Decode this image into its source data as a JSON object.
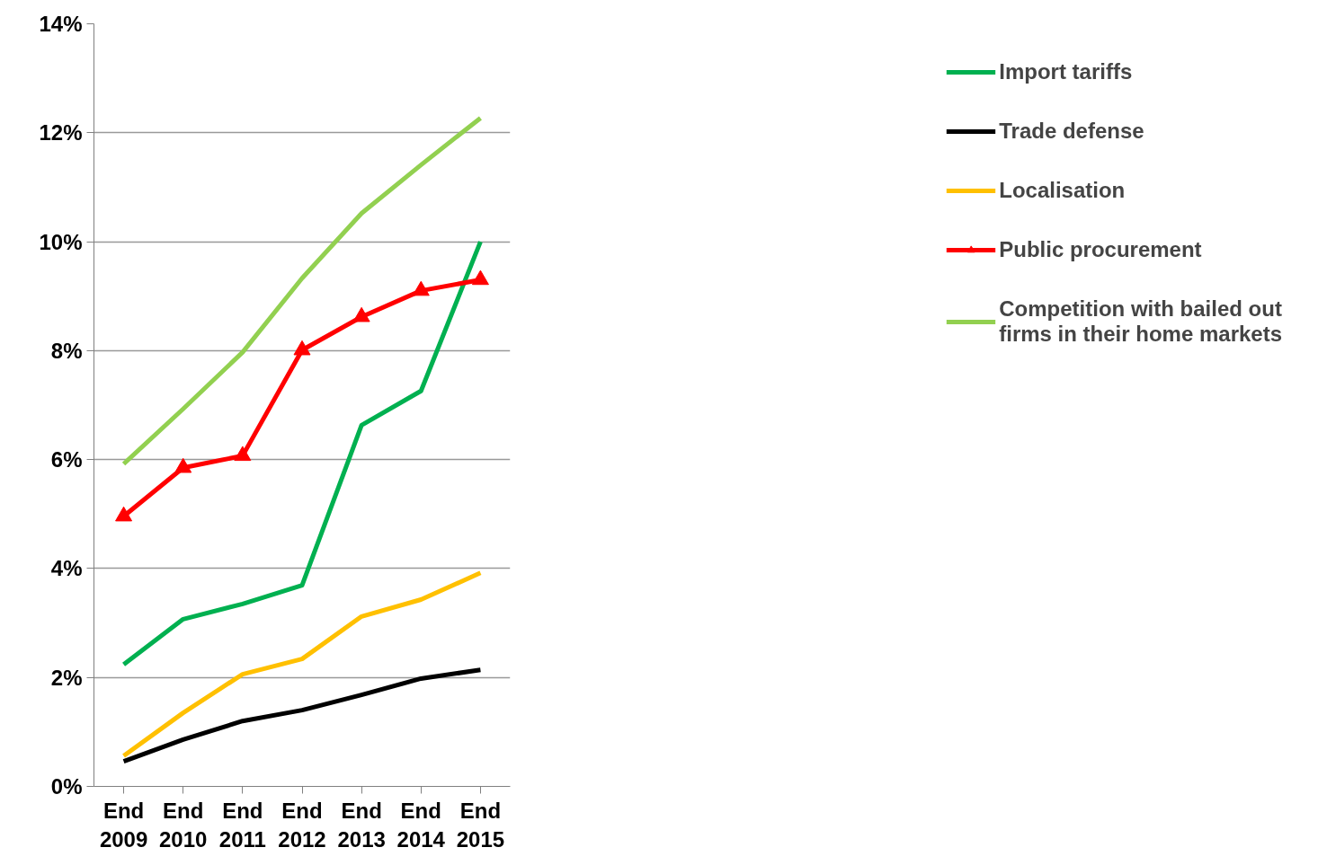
{
  "chart_data": {
    "type": "line",
    "categories": [
      "End 2009",
      "End 2010",
      "End 2011",
      "End 2012",
      "End 2013",
      "End 2014",
      "End 2015"
    ],
    "ylim": [
      0,
      14
    ],
    "yticks": [
      {
        "value": 0,
        "label": "0%"
      },
      {
        "value": 2,
        "label": "2%"
      },
      {
        "value": 4,
        "label": "4%"
      },
      {
        "value": 6,
        "label": "6%"
      },
      {
        "value": 8,
        "label": "8%"
      },
      {
        "value": 10,
        "label": "10%"
      },
      {
        "value": 12,
        "label": "12%"
      },
      {
        "value": 14,
        "label": "14%"
      }
    ],
    "grid": "y",
    "legend": "right",
    "line_style": "solid",
    "series": [
      {
        "name": "Import tariffs",
        "color": "#00b050",
        "values": [
          2.24,
          3.07,
          3.35,
          3.69,
          6.63,
          7.26,
          10.0
        ],
        "marker": "none"
      },
      {
        "name": "Trade defense",
        "color": "#000000",
        "values": [
          0.46,
          0.86,
          1.2,
          1.4,
          1.68,
          1.98,
          2.14
        ],
        "marker": "none"
      },
      {
        "name": "Localisation",
        "color": "#ffc000",
        "values": [
          0.56,
          1.35,
          2.06,
          2.34,
          3.12,
          3.43,
          3.92
        ],
        "marker": "none"
      },
      {
        "name": "Public procurement",
        "color": "#ff0000",
        "values": [
          4.96,
          5.85,
          6.07,
          8.01,
          8.62,
          9.1,
          9.3
        ],
        "marker": "triangle"
      },
      {
        "name": "Competition with bailed out firms in their home markets",
        "color": "#92d050",
        "values": [
          5.92,
          6.93,
          7.97,
          9.33,
          10.52,
          11.41,
          12.27
        ],
        "marker": "none"
      }
    ]
  }
}
